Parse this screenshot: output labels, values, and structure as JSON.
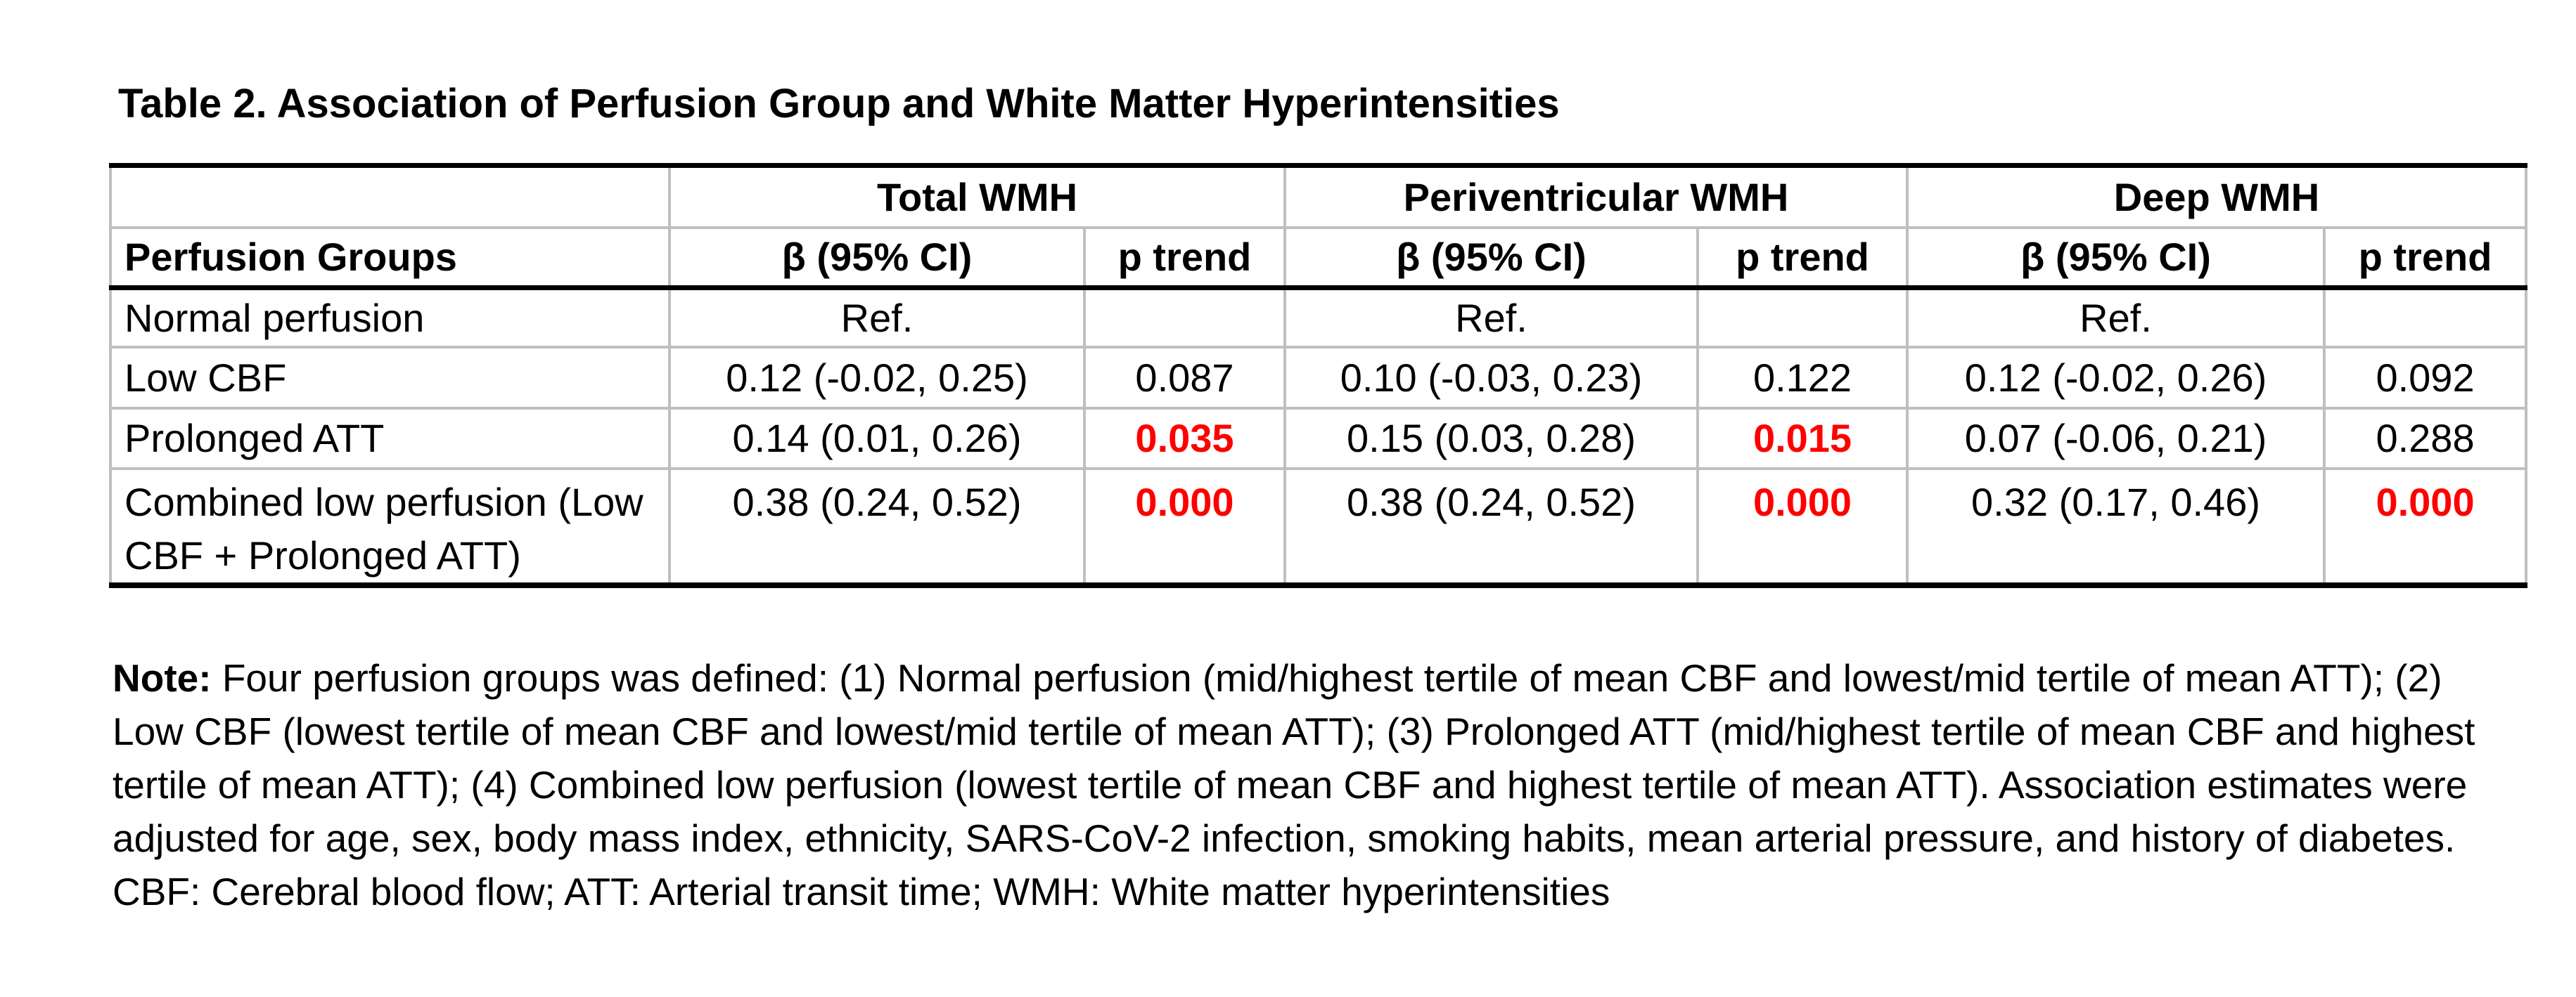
{
  "title": "Table 2. Association of Perfusion Group and White Matter Hyperintensities",
  "table": {
    "group_headers": {
      "total": "Total WMH",
      "periventricular": "Periventricular WMH",
      "deep": "Deep WMH"
    },
    "column_headers": {
      "perfusion_groups": "Perfusion Groups",
      "beta_ci": "β (95% CI)",
      "p_trend": "p trend"
    },
    "rows": [
      {
        "label": "Normal perfusion",
        "total_beta": "Ref.",
        "total_p": "",
        "peri_beta": "Ref.",
        "peri_p": "",
        "deep_beta": "Ref.",
        "deep_p": ""
      },
      {
        "label": "Low CBF",
        "total_beta": "0.12 (-0.02, 0.25)",
        "total_p": "0.087",
        "peri_beta": "0.10 (-0.03, 0.23)",
        "peri_p": "0.122",
        "deep_beta": "0.12 (-0.02, 0.26)",
        "deep_p": "0.092"
      },
      {
        "label": "Prolonged ATT",
        "total_beta": "0.14 (0.01, 0.26)",
        "total_p": "0.035",
        "peri_beta": "0.15 (0.03, 0.28)",
        "peri_p": "0.015",
        "deep_beta": "0.07 (-0.06, 0.21)",
        "deep_p": "0.288"
      },
      {
        "label": "Combined low perfusion (Low CBF + Prolonged ATT)",
        "total_beta": "0.38 (0.24, 0.52)",
        "total_p": "0.000",
        "peri_beta": "0.38 (0.24, 0.52)",
        "peri_p": "0.000",
        "deep_beta": "0.32 (0.17, 0.46)",
        "deep_p": "0.000"
      }
    ]
  },
  "note": {
    "label": "Note:",
    "body": "Four perfusion groups was defined: (1) Normal perfusion (mid/highest tertile of mean CBF and lowest/mid tertile of mean ATT); (2) Low CBF (lowest tertile of mean CBF and lowest/mid tertile of mean ATT); (3) Prolonged ATT (mid/highest tertile of mean CBF and highest tertile of mean ATT); (4) Combined low perfusion (lowest tertile of mean CBF and highest tertile of mean ATT). Association estimates were adjusted for age, sex, body mass index, ethnicity, SARS-CoV-2 infection, smoking habits, mean arterial pressure, and history of diabetes. CBF: Cerebral blood flow; ATT: Arterial transit time; WMH: White matter hyperintensities"
  },
  "colors": {
    "significant": "#FF0000",
    "border_light": "#BFBFBF",
    "border_dark": "#000000",
    "text": "#000000",
    "background": "#FFFFFF"
  },
  "chart_data": {
    "type": "table",
    "title": "Table 2. Association of Perfusion Group and White Matter Hyperintensities",
    "column_groups": [
      "",
      "Total WMH",
      "Total WMH",
      "Periventricular WMH",
      "Periventricular WMH",
      "Deep WMH",
      "Deep WMH"
    ],
    "columns": [
      "Perfusion Groups",
      "β (95% CI)",
      "p trend",
      "β (95% CI)",
      "p trend",
      "β (95% CI)",
      "p trend"
    ],
    "rows": [
      [
        "Normal perfusion",
        "Ref.",
        "",
        "Ref.",
        "",
        "Ref.",
        ""
      ],
      [
        "Low CBF",
        "0.12 (-0.02, 0.25)",
        "0.087",
        "0.10 (-0.03, 0.23)",
        "0.122",
        "0.12 (-0.02, 0.26)",
        "0.092"
      ],
      [
        "Prolonged ATT",
        "0.14 (0.01, 0.26)",
        "0.035",
        "0.15 (0.03, 0.28)",
        "0.015",
        "0.07 (-0.06, 0.21)",
        "0.288"
      ],
      [
        "Combined low perfusion (Low CBF + Prolonged ATT)",
        "0.38 (0.24, 0.52)",
        "0.000",
        "0.38 (0.24, 0.52)",
        "0.000",
        "0.32 (0.17, 0.46)",
        "0.000"
      ]
    ],
    "red_bold_cells": [
      [
        2,
        2
      ],
      [
        2,
        4
      ],
      [
        3,
        2
      ],
      [
        3,
        4
      ],
      [
        3,
        6
      ]
    ]
  }
}
